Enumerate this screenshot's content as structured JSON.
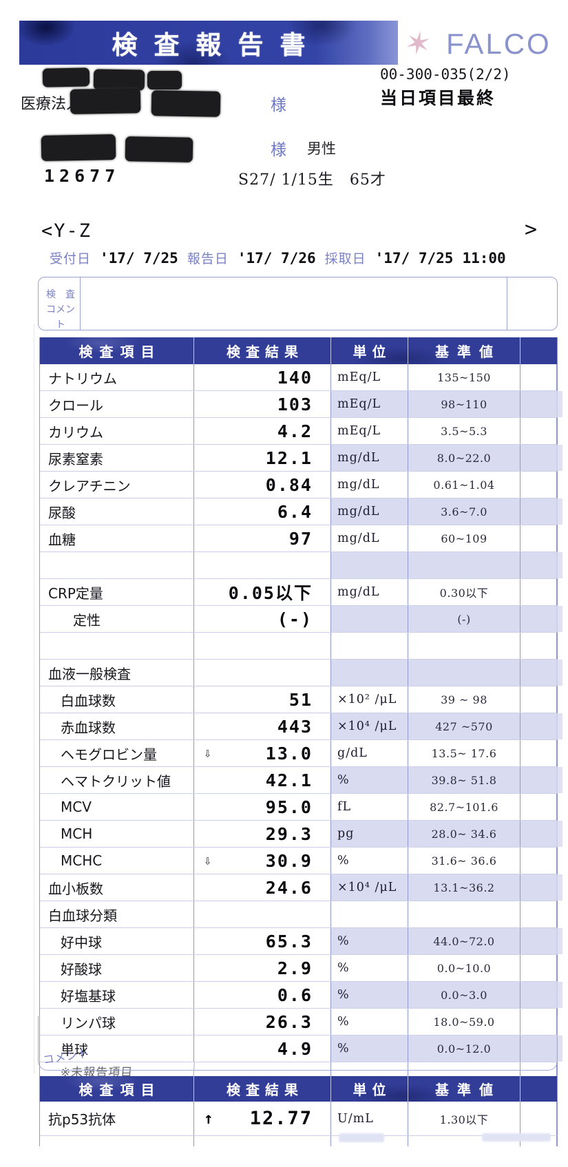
{
  "page": {
    "title_banner": "検査報告書",
    "brand": "FALCO",
    "doc_number": "00-300-035(2/2)",
    "print_type": "当日項目最終",
    "org_prefix": "医療法人",
    "honorific_org": "様",
    "honorific_patient": "様",
    "sex": "男性",
    "patient_no": "12677",
    "birth_line": "S27/ 1/15生　65才",
    "section_open": "<Y-Z",
    "section_close": ">",
    "date_row": {
      "reception_label": "受付日",
      "reception_value": "'17/ 7/25",
      "report_label": "報告日",
      "report_value": "'17/ 7/26",
      "collection_label": "採取日",
      "collection_value": "'17/ 7/25",
      "collection_time": "11:00"
    },
    "comment_box": {
      "label_line1": "検　査",
      "label_line2": "コメント",
      "value": ""
    },
    "footer_stamp": "コメント"
  },
  "results_table": {
    "headers": {
      "item": "検査項目",
      "result": "検査結果",
      "unit": "単位",
      "reference": "基準値"
    },
    "rows": [
      {
        "item": "ナトリウム",
        "flag": "",
        "result": "140",
        "unit": "mEq/L",
        "reference": "135~150",
        "shaded": false,
        "indent": 0
      },
      {
        "item": "クロール",
        "flag": "",
        "result": "103",
        "unit": "mEq/L",
        "reference": "98~110",
        "shaded": true,
        "indent": 0
      },
      {
        "item": "カリウム",
        "flag": "",
        "result": "4.2",
        "unit": "mEq/L",
        "reference": "3.5~5.3",
        "shaded": false,
        "indent": 0
      },
      {
        "item": "尿素窒素",
        "flag": "",
        "result": "12.1",
        "unit": "mg/dL",
        "reference": "8.0~22.0",
        "shaded": true,
        "indent": 0
      },
      {
        "item": "クレアチニン",
        "flag": "",
        "result": "0.84",
        "unit": "mg/dL",
        "reference": "0.61~1.04",
        "shaded": false,
        "indent": 0
      },
      {
        "item": "尿酸",
        "flag": "",
        "result": "6.4",
        "unit": "mg/dL",
        "reference": "3.6~7.0",
        "shaded": true,
        "indent": 0
      },
      {
        "item": "血糖",
        "flag": "",
        "result": "97",
        "unit": "mg/dL",
        "reference": "60~109",
        "shaded": false,
        "indent": 0
      },
      {
        "item": "",
        "flag": "",
        "result": "",
        "unit": "",
        "reference": "",
        "shaded": true,
        "indent": 0
      },
      {
        "item": "CRP定量",
        "flag": "",
        "result": "0.05以下",
        "unit": "mg/dL",
        "reference": "0.30以下",
        "shaded": false,
        "indent": 0
      },
      {
        "item": "定性",
        "flag": "",
        "result": "(-)",
        "unit": "",
        "reference": "(-)",
        "shaded": true,
        "indent": 2
      },
      {
        "item": "",
        "flag": "",
        "result": "",
        "unit": "",
        "reference": "",
        "shaded": false,
        "indent": 0
      },
      {
        "item": "血液一般検査",
        "flag": "",
        "result": "",
        "unit": "",
        "reference": "",
        "shaded": true,
        "indent": 0
      },
      {
        "item": "白血球数",
        "flag": "",
        "result": "51",
        "unit": "×10² /μL",
        "reference": "39 ~ 98",
        "shaded": false,
        "indent": 1
      },
      {
        "item": "赤血球数",
        "flag": "",
        "result": "443",
        "unit": "×10⁴ /μL",
        "reference": "427 ~570",
        "shaded": true,
        "indent": 1
      },
      {
        "item": "ヘモグロビン量",
        "flag": "⇩",
        "result": "13.0",
        "unit": "g/dL",
        "reference": "13.5~ 17.6",
        "shaded": false,
        "indent": 1
      },
      {
        "item": "ヘマトクリット値",
        "flag": "",
        "result": "42.1",
        "unit": "%",
        "reference": "39.8~ 51.8",
        "shaded": true,
        "indent": 1
      },
      {
        "item": "MCV",
        "flag": "",
        "result": "95.0",
        "unit": "fL",
        "reference": "82.7~101.6",
        "shaded": false,
        "indent": 1
      },
      {
        "item": "MCH",
        "flag": "",
        "result": "29.3",
        "unit": "pg",
        "reference": "28.0~ 34.6",
        "shaded": true,
        "indent": 1
      },
      {
        "item": "MCHC",
        "flag": "⇩",
        "result": "30.9",
        "unit": "%",
        "reference": "31.6~ 36.6",
        "shaded": false,
        "indent": 1
      },
      {
        "item": "血小板数",
        "flag": "",
        "result": "24.6",
        "unit": "×10⁴ /μL",
        "reference": "13.1~36.2",
        "shaded": true,
        "indent": 0
      },
      {
        "item": "白血球分類",
        "flag": "",
        "result": "",
        "unit": "",
        "reference": "",
        "shaded": false,
        "indent": 0
      },
      {
        "item": "好中球",
        "flag": "",
        "result": "65.3",
        "unit": "%",
        "reference": "44.0~72.0",
        "shaded": true,
        "indent": 1
      },
      {
        "item": "好酸球",
        "flag": "",
        "result": "2.9",
        "unit": "%",
        "reference": "0.0~10.0",
        "shaded": false,
        "indent": 1
      },
      {
        "item": "好塩基球",
        "flag": "",
        "result": "0.6",
        "unit": "%",
        "reference": "0.0~3.0",
        "shaded": true,
        "indent": 1
      },
      {
        "item": "リンパ球",
        "flag": "",
        "result": "26.3",
        "unit": "%",
        "reference": "18.0~59.0",
        "shaded": false,
        "indent": 1
      },
      {
        "item": "単球",
        "flag": "",
        "result": "4.9",
        "unit": "%",
        "reference": "0.0~12.0",
        "shaded": true,
        "indent": 1
      },
      {
        "item": "※未報告項目",
        "flag": "",
        "result": "",
        "unit": "",
        "reference": "",
        "shaded": false,
        "indent": 1,
        "degraded": true,
        "last": true
      }
    ]
  },
  "special_table": {
    "headers": {
      "item": "検査項目",
      "result": "検査結果",
      "unit": "単位",
      "reference": "基準値"
    },
    "rows": [
      {
        "item": "抗p53抗体",
        "flag": "↑",
        "result": "12.77",
        "unit": "U/mL",
        "reference": "1.30以下",
        "shaded": false,
        "indent": 0
      },
      {
        "item": "",
        "flag": "",
        "result": "",
        "unit": "",
        "reference": "",
        "shaded": false,
        "indent": 0,
        "stub": true
      }
    ]
  },
  "colors": {
    "header_navy": "#323d98",
    "banner_navy": "#2c3a9a",
    "row_shade": "#d9dcf0",
    "label_blue": "#7a82c6",
    "brand_blue": "#8a93cc",
    "brand_pink": "#dba8bc"
  }
}
